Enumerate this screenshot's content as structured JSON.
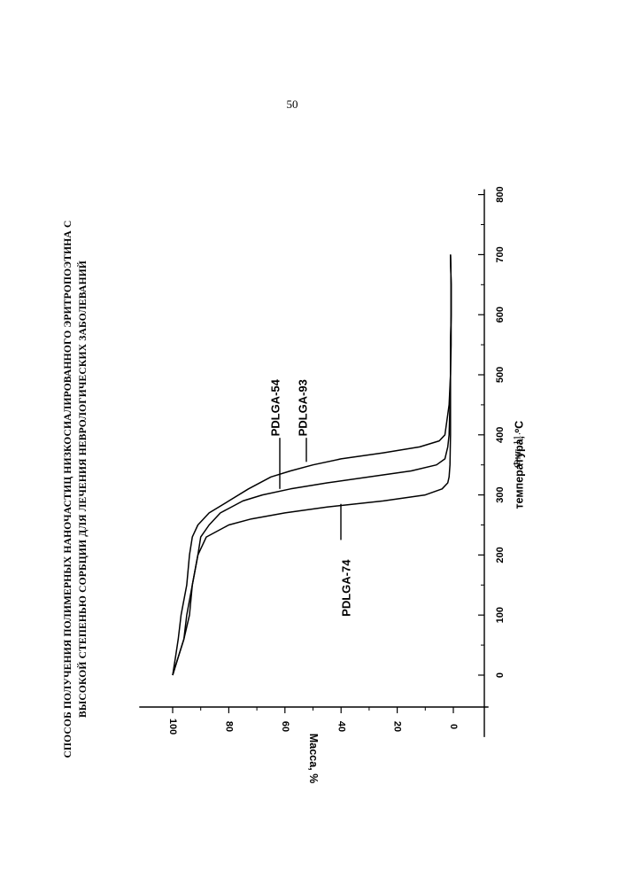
{
  "page": {
    "number": "50",
    "title_line1": "СПОСОБ ПОЛУЧЕНИЯ ПОЛИМЕРНЫХ НАНОЧАСТИЦ НИЗКОСИАЛИРОВАННОГО ЭРИТРОПОЭТИНА С",
    "title_line2": "ВЫСОКОЙ СТЕПЕНЬЮ СОРБЦИИ ДЛЯ ЛЕЧЕНИЯ НЕВРОЛОГИЧЕСКИХ ЗАБОЛЕВАНИЙ",
    "caption": "Фиг. 11."
  },
  "chart_data": {
    "type": "line",
    "xlabel": "температура, ºС",
    "ylabel": "Масса, %",
    "xlim": [
      -50,
      800
    ],
    "ylim": [
      -10,
      110
    ],
    "x_ticks": [
      0,
      100,
      200,
      300,
      400,
      500,
      600,
      700,
      800
    ],
    "y_ticks": [
      0,
      20,
      40,
      60,
      80,
      100
    ],
    "grid": false,
    "series": [
      {
        "name": "PDLGA-74",
        "x": [
          0,
          30,
          60,
          100,
          150,
          200,
          230,
          250,
          260,
          270,
          280,
          290,
          300,
          310,
          320,
          330,
          350,
          400,
          450,
          500,
          550,
          600,
          650,
          700
        ],
        "y": [
          100,
          98,
          96,
          94,
          93,
          91,
          88,
          80,
          72,
          60,
          45,
          25,
          10,
          4,
          2,
          1.5,
          1.2,
          1,
          1,
          1,
          1,
          0.8,
          0.8,
          1
        ]
      },
      {
        "name": "PDLGA-54",
        "x": [
          0,
          30,
          60,
          100,
          150,
          200,
          230,
          250,
          270,
          290,
          300,
          310,
          320,
          330,
          340,
          350,
          360,
          380,
          400,
          450,
          500,
          550,
          600,
          650,
          700
        ],
        "y": [
          100,
          98,
          96,
          95,
          93,
          91,
          90,
          87,
          83,
          75,
          68,
          58,
          45,
          30,
          15,
          6,
          3,
          2,
          1.5,
          1.2,
          1,
          1,
          0.8,
          0.8,
          1
        ]
      },
      {
        "name": "PDLGA-93",
        "x": [
          0,
          30,
          60,
          100,
          150,
          200,
          230,
          250,
          270,
          290,
          310,
          330,
          340,
          350,
          360,
          370,
          380,
          390,
          400,
          450,
          500,
          550,
          600,
          650,
          700
        ],
        "y": [
          100,
          99,
          98,
          97,
          95,
          94,
          93,
          91,
          87,
          80,
          73,
          65,
          58,
          50,
          40,
          25,
          12,
          5,
          3,
          1.5,
          1,
          0.8,
          0.8,
          0.8,
          1
        ]
      }
    ],
    "annotations": [
      {
        "text": "PDLGA-54",
        "points_to": {
          "x": 310,
          "y": 62
        }
      },
      {
        "text": "PDLGA-93",
        "points_to": {
          "x": 355,
          "y": 53
        }
      },
      {
        "text": "PDLGA-74",
        "points_to": {
          "x": 285,
          "y": 40
        }
      }
    ]
  }
}
